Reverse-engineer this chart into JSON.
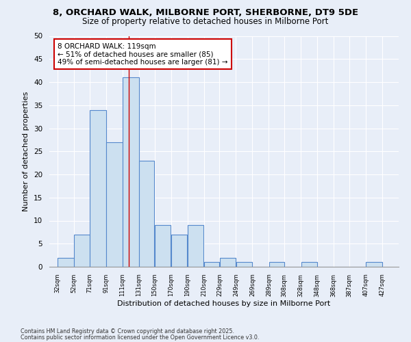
{
  "title1": "8, ORCHARD WALK, MILBORNE PORT, SHERBORNE, DT9 5DE",
  "title2": "Size of property relative to detached houses in Milborne Port",
  "xlabel": "Distribution of detached houses by size in Milborne Port",
  "ylabel": "Number of detached properties",
  "bar_left_edges": [
    32,
    52,
    71,
    91,
    111,
    131,
    150,
    170,
    190,
    210,
    229,
    249,
    269,
    289,
    308,
    328,
    348,
    368,
    387,
    407
  ],
  "bar_heights": [
    2,
    7,
    34,
    27,
    41,
    23,
    9,
    7,
    9,
    1,
    2,
    1,
    0,
    1,
    0,
    1,
    0,
    0,
    0,
    1
  ],
  "bar_widths": [
    20,
    19,
    20,
    20,
    20,
    19,
    20,
    20,
    20,
    19,
    20,
    20,
    20,
    19,
    20,
    20,
    20,
    19,
    20,
    20
  ],
  "tick_labels": [
    "32sqm",
    "52sqm",
    "71sqm",
    "91sqm",
    "111sqm",
    "131sqm",
    "150sqm",
    "170sqm",
    "190sqm",
    "210sqm",
    "229sqm",
    "249sqm",
    "269sqm",
    "289sqm",
    "308sqm",
    "328sqm",
    "348sqm",
    "368sqm",
    "387sqm",
    "407sqm",
    "427sqm"
  ],
  "tick_positions": [
    32,
    52,
    71,
    91,
    111,
    131,
    150,
    170,
    190,
    210,
    229,
    249,
    269,
    289,
    308,
    328,
    348,
    368,
    387,
    407,
    427
  ],
  "bar_color": "#cce0f0",
  "bar_edge_color": "#5588cc",
  "red_line_x": 119,
  "annotation_title": "8 ORCHARD WALK: 119sqm",
  "annotation_line1": "← 51% of detached houses are smaller (85)",
  "annotation_line2": "49% of semi-detached houses are larger (81) →",
  "annotation_box_color": "#ffffff",
  "annotation_box_edge": "#cc0000",
  "ylim": [
    0,
    50
  ],
  "yticks": [
    0,
    5,
    10,
    15,
    20,
    25,
    30,
    35,
    40,
    45,
    50
  ],
  "footnote1": "Contains HM Land Registry data © Crown copyright and database right 2025.",
  "footnote2": "Contains public sector information licensed under the Open Government Licence v3.0.",
  "bg_color": "#e8eef8"
}
